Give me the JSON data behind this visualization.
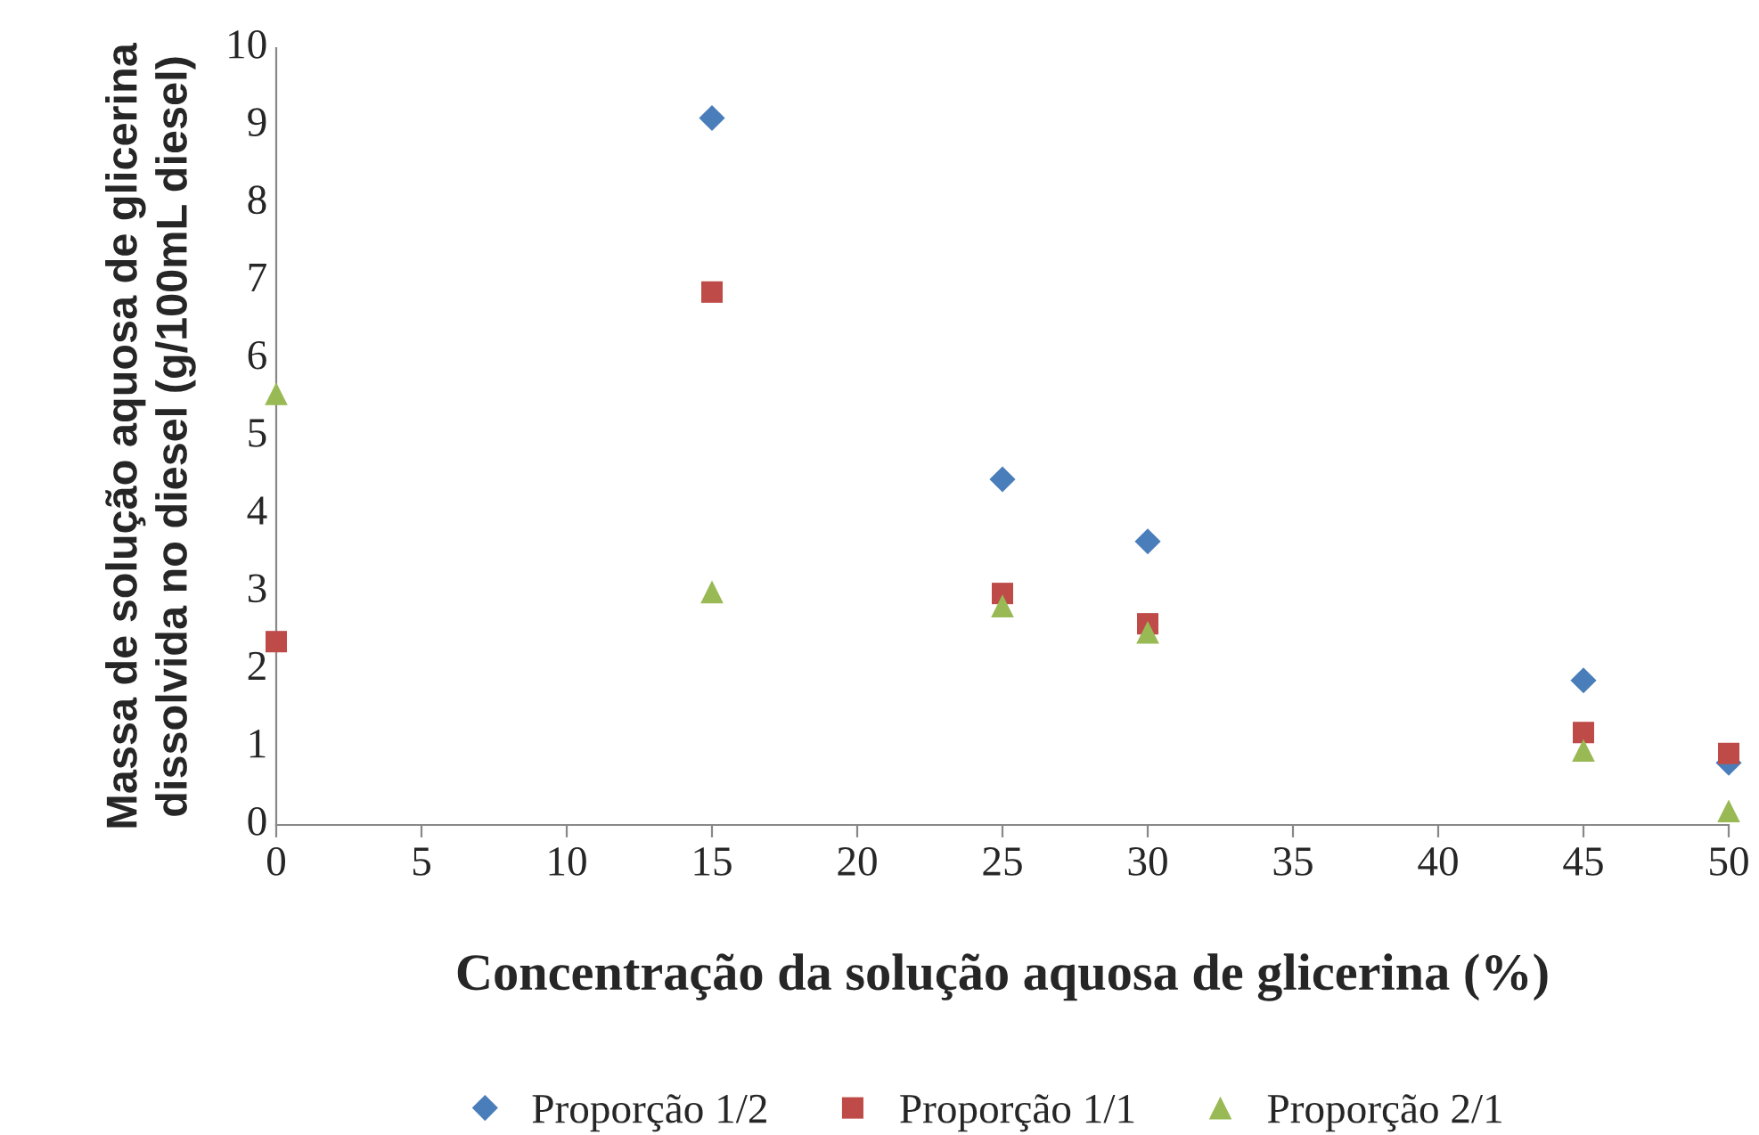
{
  "chart_data": {
    "type": "scatter",
    "xlabel": "Concentração da solução aquosa de glicerina (%)",
    "ylabel": "Massa de solução aquosa de glicerina\ndissolvida no diesel (g/100mL diesel)",
    "series": [
      {
        "name": "Proporção 1/2",
        "color": "#4a7ebb",
        "marker": "diamond",
        "x": [
          15,
          25,
          30,
          45,
          50
        ],
        "values": [
          9.1,
          4.45,
          3.65,
          1.86,
          0.8
        ]
      },
      {
        "name": "Proporção 1/1",
        "color": "#be4b48",
        "marker": "square",
        "x": [
          0,
          15,
          25,
          30,
          45,
          50
        ],
        "values": [
          2.36,
          6.86,
          2.98,
          2.59,
          1.19,
          0.92
        ]
      },
      {
        "name": "Proporção 2/1",
        "color": "#98b954",
        "marker": "triangle",
        "x": [
          0,
          15,
          25,
          30,
          45,
          50
        ],
        "values": [
          5.55,
          3.0,
          2.82,
          2.48,
          0.96,
          0.18
        ]
      }
    ],
    "xlim": [
      0,
      50
    ],
    "xticks": [
      0,
      5,
      10,
      15,
      20,
      25,
      30,
      35,
      40,
      45,
      50
    ],
    "ylim": [
      0,
      10
    ],
    "yticks": [
      0,
      1,
      2,
      3,
      4,
      5,
      6,
      7,
      8,
      9,
      10
    ],
    "grid": false,
    "legend": "bottom"
  }
}
